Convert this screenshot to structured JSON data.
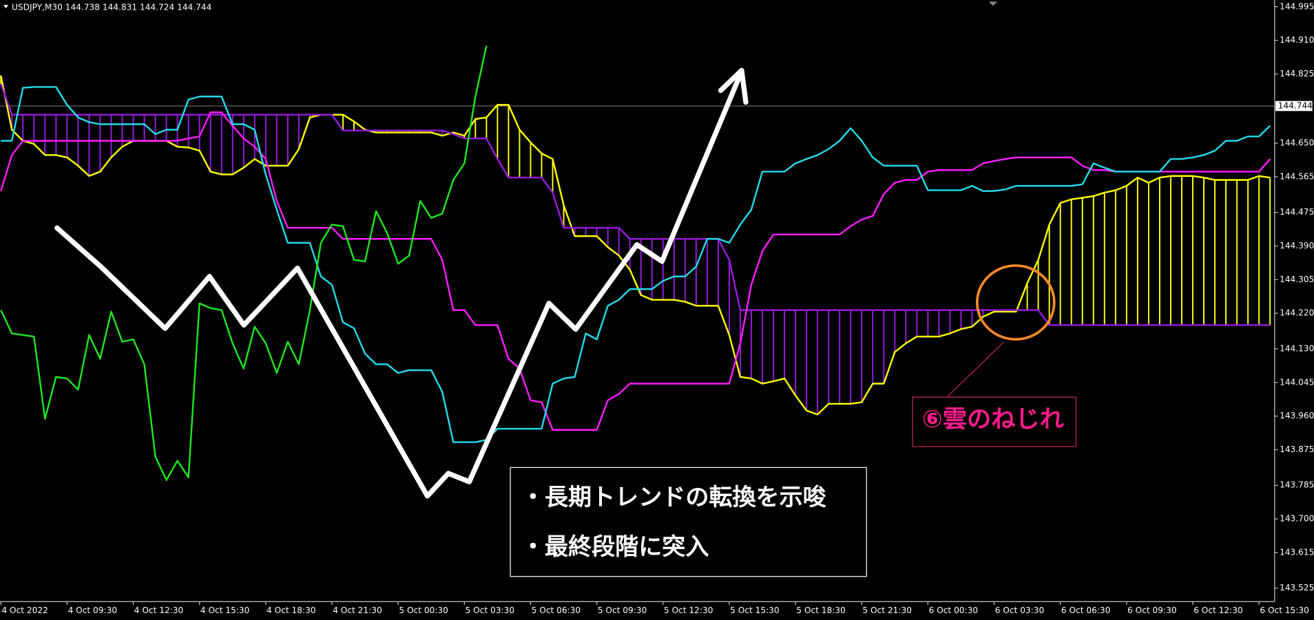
{
  "chart_data": {
    "type": "line",
    "title": "USDJPY,M30 144.738 144.831 144.724 144.744",
    "current_price": 144.744,
    "cloud_fill": true,
    "grid": false,
    "ylim": [
      143.491,
      145.012
    ],
    "yticks": [
      144.995,
      {
        "value": 144.91,
        "label": "144.910"
      },
      144.825,
      {
        "value": 144.65,
        "label": "144.650"
      },
      144.565,
      144.475,
      {
        "value": 144.39,
        "label": "144.390"
      },
      144.305,
      {
        "value": 144.22,
        "label": "144.220"
      },
      {
        "value": 144.13,
        "label": "144.130"
      },
      144.045,
      {
        "value": 143.96,
        "label": "143.960"
      },
      143.875,
      143.785,
      {
        "value": 143.7,
        "label": "143.700"
      },
      143.615,
      143.525
    ],
    "categories": [
      "4 Oct 2022",
      null,
      null,
      null,
      null,
      null,
      "4 Oct 09:30",
      null,
      null,
      null,
      null,
      null,
      "4 Oct 12:30",
      null,
      null,
      null,
      null,
      null,
      "4 Oct 15:30",
      null,
      null,
      null,
      null,
      null,
      "4 Oct 18:30",
      null,
      null,
      null,
      null,
      null,
      "4 Oct 21:30",
      null,
      null,
      null,
      null,
      null,
      "5 Oct 00:30",
      null,
      null,
      null,
      null,
      null,
      "5 Oct 03:30",
      null,
      null,
      null,
      null,
      null,
      "5 Oct 06:30",
      null,
      null,
      null,
      null,
      null,
      "5 Oct 09:30",
      null,
      null,
      null,
      null,
      null,
      "5 Oct 12:30",
      null,
      null,
      null,
      null,
      null,
      "5 Oct 15:30",
      null,
      null,
      null,
      null,
      null,
      "5 Oct 18:30",
      null,
      null,
      null,
      null,
      null,
      "5 Oct 21:30",
      null,
      null,
      null,
      null,
      null,
      "6 Oct 00:30",
      null,
      null,
      null,
      null,
      null,
      "6 Oct 03:30",
      null,
      null,
      null,
      null,
      null,
      "6 Oct 06:30",
      null,
      null,
      null,
      null,
      null,
      "6 Oct 09:30",
      null,
      null,
      null,
      null,
      null,
      "6 Oct 12:30",
      null,
      null,
      null,
      null,
      null,
      "6 Oct 15:30",
      null
    ],
    "series": [
      {
        "color": "#22dcec",
        "values": [
          144.656,
          144.656,
          144.79,
          144.792,
          144.792,
          144.792,
          144.747,
          144.715,
          144.703,
          144.698,
          144.698,
          144.698,
          144.698,
          144.698,
          144.673,
          144.684,
          144.684,
          144.76,
          144.768,
          144.768,
          144.768,
          144.698,
          144.698,
          144.684,
          144.571,
          144.482,
          144.398,
          144.398,
          144.398,
          144.313,
          144.292,
          144.197,
          144.182,
          144.118,
          144.091,
          144.091,
          144.069,
          144.076,
          144.076,
          144.076,
          144.021,
          143.894,
          143.894,
          143.894,
          143.9,
          143.928,
          143.928,
          143.928,
          143.928,
          143.928,
          144.042,
          144.055,
          144.059,
          144.169,
          144.154,
          144.239,
          144.254,
          144.281,
          144.281,
          144.281,
          144.302,
          144.313,
          144.313,
          144.338,
          144.408,
          144.408,
          144.398,
          144.444,
          144.482,
          144.578,
          144.578,
          144.578,
          144.599,
          144.61,
          144.62,
          144.635,
          144.656,
          144.688,
          144.656,
          144.614,
          144.593,
          144.593,
          144.593,
          144.593,
          144.531,
          144.531,
          144.531,
          144.531,
          144.542,
          144.529,
          144.529,
          144.533,
          144.542,
          144.542,
          144.542,
          144.542,
          144.542,
          144.542,
          144.546,
          144.599,
          144.588,
          144.578,
          144.578,
          144.578,
          144.578,
          144.578,
          144.61,
          144.61,
          144.614,
          144.62,
          144.631,
          144.656,
          144.656,
          144.667,
          144.667,
          144.694
        ]
      },
      {
        "color": "#ff1cff",
        "values": [
          144.529,
          144.62,
          144.656,
          144.656,
          144.656,
          144.656,
          144.656,
          144.656,
          144.656,
          144.656,
          144.656,
          144.656,
          144.656,
          144.656,
          144.656,
          144.656,
          144.656,
          144.662,
          144.667,
          144.728,
          144.728,
          144.694,
          144.662,
          144.641,
          144.61,
          144.504,
          144.436,
          144.436,
          144.436,
          144.436,
          144.436,
          144.408,
          144.408,
          144.408,
          144.408,
          144.408,
          144.408,
          144.408,
          144.408,
          144.408,
          144.355,
          144.228,
          144.228,
          144.19,
          144.19,
          144.19,
          144.105,
          144.08,
          144.0,
          143.995,
          143.925,
          143.925,
          143.925,
          143.925,
          143.925,
          144.0,
          144.016,
          144.042,
          144.042,
          144.042,
          144.042,
          144.042,
          144.042,
          144.042,
          144.042,
          144.042,
          144.042,
          144.144,
          144.292,
          144.377,
          144.419,
          144.419,
          144.419,
          144.419,
          144.419,
          144.419,
          144.419,
          144.44,
          144.457,
          144.466,
          144.521,
          144.55,
          144.557,
          144.557,
          144.578,
          144.582,
          144.582,
          144.582,
          144.582,
          144.599,
          144.605,
          144.61,
          144.614,
          144.614,
          144.614,
          144.614,
          144.614,
          144.614,
          144.593,
          144.582,
          144.582,
          144.578,
          144.578,
          144.578,
          144.578,
          144.578,
          144.578,
          144.578,
          144.578,
          144.578,
          144.578,
          144.578,
          144.578,
          144.578,
          144.578,
          144.61
        ]
      },
      {
        "color": "#ffff00",
        "cloud": true,
        "values": [
          144.821,
          144.684,
          144.656,
          144.648,
          144.62,
          144.62,
          144.614,
          144.593,
          144.567,
          144.578,
          144.614,
          144.641,
          144.656,
          144.656,
          144.656,
          144.656,
          144.641,
          144.639,
          144.631,
          144.578,
          144.571,
          144.571,
          144.588,
          144.61,
          144.593,
          144.593,
          144.593,
          144.635,
          144.715,
          144.722,
          144.722,
          144.722,
          144.705,
          144.684,
          144.677,
          144.677,
          144.677,
          144.677,
          144.677,
          144.677,
          144.669,
          144.677,
          144.669,
          144.711,
          144.715,
          144.747,
          144.747,
          144.684,
          144.652,
          144.624,
          144.61,
          144.493,
          144.415,
          144.415,
          144.415,
          144.387,
          144.366,
          144.33,
          144.266,
          144.254,
          144.254,
          144.254,
          144.249,
          144.239,
          144.239,
          144.239,
          144.165,
          144.059,
          144.055,
          144.042,
          144.048,
          144.055,
          144.012,
          143.974,
          143.964,
          143.991,
          143.991,
          143.991,
          143.995,
          144.042,
          144.042,
          144.122,
          144.144,
          144.161,
          144.161,
          144.161,
          144.169,
          144.18,
          144.186,
          144.211,
          144.224,
          144.224,
          144.224,
          144.296,
          144.355,
          144.444,
          144.499,
          144.508,
          144.512,
          144.516,
          144.525,
          144.531,
          144.542,
          144.563,
          144.55,
          144.563,
          144.567,
          144.567,
          144.567,
          144.563,
          144.557,
          144.557,
          144.557,
          144.557,
          144.567,
          144.563
        ]
      },
      {
        "color": "#9a1ae0",
        "cloud": true,
        "values": [
          144.8,
          144.722,
          144.722,
          144.722,
          144.722,
          144.722,
          144.722,
          144.722,
          144.722,
          144.722,
          144.722,
          144.722,
          144.722,
          144.722,
          144.722,
          144.722,
          144.722,
          144.722,
          144.722,
          144.722,
          144.722,
          144.722,
          144.722,
          144.722,
          144.722,
          144.722,
          144.722,
          144.722,
          144.722,
          144.722,
          144.722,
          144.682,
          144.682,
          144.682,
          144.682,
          144.682,
          144.682,
          144.682,
          144.682,
          144.682,
          144.682,
          144.673,
          144.662,
          144.662,
          144.662,
          144.61,
          144.563,
          144.563,
          144.563,
          144.563,
          144.525,
          144.436,
          144.436,
          144.436,
          144.436,
          144.436,
          144.436,
          144.408,
          144.408,
          144.408,
          144.408,
          144.408,
          144.408,
          144.408,
          144.408,
          144.408,
          144.355,
          144.228,
          144.228,
          144.228,
          144.228,
          144.228,
          144.228,
          144.228,
          144.228,
          144.228,
          144.228,
          144.228,
          144.228,
          144.228,
          144.228,
          144.228,
          144.228,
          144.228,
          144.228,
          144.228,
          144.228,
          144.228,
          144.228,
          144.228,
          144.228,
          144.228,
          144.228,
          144.228,
          144.228,
          144.19,
          144.19,
          144.19,
          144.19,
          144.19,
          144.19,
          144.19,
          144.19,
          144.19,
          144.19,
          144.19,
          144.19,
          144.19,
          144.19,
          144.19,
          144.19,
          144.19,
          144.19,
          144.19,
          144.19,
          144.19
        ]
      },
      {
        "color": "#1ee81e",
        "values": [
          144.228,
          144.169,
          144.165,
          144.161,
          143.953,
          144.059,
          144.055,
          144.027,
          144.165,
          144.105,
          144.224,
          144.148,
          144.154,
          144.091,
          143.858,
          143.798,
          143.847,
          143.805,
          144.245,
          144.233,
          144.228,
          144.144,
          144.08,
          144.186,
          144.144,
          144.069,
          144.148,
          144.091,
          144.228,
          144.398,
          144.444,
          144.44,
          144.355,
          144.351,
          144.478,
          144.423,
          144.345,
          144.366,
          144.504,
          144.461,
          144.472,
          144.557,
          144.599,
          144.768,
          144.896,
          null,
          null,
          null,
          null,
          null,
          null,
          null,
          null,
          null,
          null,
          null,
          null,
          null,
          null,
          null,
          null,
          null,
          null,
          null,
          null,
          null,
          null,
          null,
          null,
          null,
          null,
          null,
          null,
          null,
          null,
          null,
          null,
          null,
          null,
          null,
          null,
          null,
          null,
          null,
          null,
          null,
          null,
          null,
          null,
          null,
          null,
          null,
          null,
          null,
          null,
          null,
          null,
          null,
          null,
          null,
          null,
          null,
          null,
          null,
          null,
          null,
          null,
          null,
          null,
          null,
          null,
          null,
          null,
          null,
          null,
          null
        ]
      }
    ]
  },
  "annotations": {
    "notes": [
      "・長期トレンドの転換を示唆",
      "・最終段階に突入"
    ],
    "twist_label": "⑥雲のねじれ"
  }
}
